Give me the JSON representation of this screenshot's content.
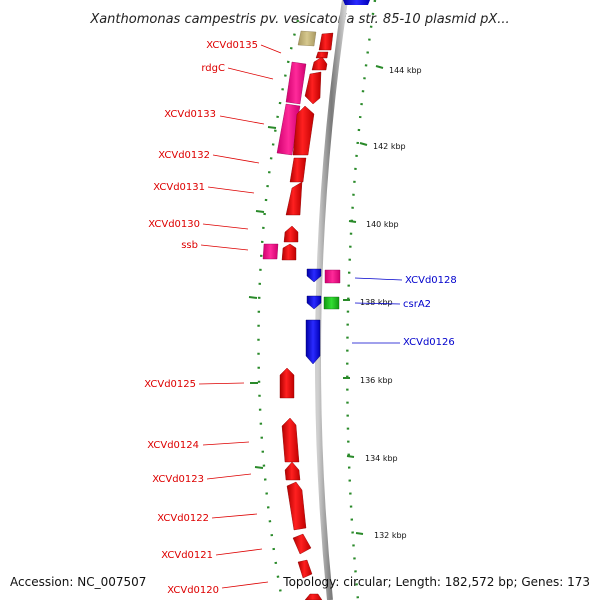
{
  "title": "Xanthomonas campestris pv. vesicatoria str. 85-10 plasmid pX...",
  "footer": {
    "accession": "Accession: NC_007507",
    "summary": "Topology: circular; Length: 182,572 bp; Genes: 173"
  },
  "colors": {
    "forward_cds": "#ff0000",
    "reverse_cds": "#0000ff",
    "magenta_feature": "#ff1493",
    "green_feature": "#22cc22",
    "olive_feature": "#c8b878",
    "ruler_tick": "#2a8a2a",
    "backbone": "#999999",
    "forward_label": "#dd0000",
    "reverse_label": "#0000cc"
  },
  "ruler_ticks": [
    "144 kbp",
    "142 kbp",
    "140 kbp",
    "138 kbp",
    "136 kbp",
    "134 kbp",
    "132 kbp"
  ],
  "genes": {
    "forward": [
      {
        "name": "XCVd0135"
      },
      {
        "name": "rdgC"
      },
      {
        "name": "XCVd0133"
      },
      {
        "name": "XCVd0132"
      },
      {
        "name": "XCVd0131"
      },
      {
        "name": "XCVd0130"
      },
      {
        "name": "ssb"
      },
      {
        "name": "XCVd0125"
      },
      {
        "name": "XCVd0124"
      },
      {
        "name": "XCVd0123"
      },
      {
        "name": "XCVd0122"
      },
      {
        "name": "XCVd0121"
      },
      {
        "name": "XCVd0120"
      }
    ],
    "reverse": [
      {
        "name": "XCVd0128"
      },
      {
        "name": "csrA2"
      },
      {
        "name": "XCVd0126"
      }
    ]
  }
}
